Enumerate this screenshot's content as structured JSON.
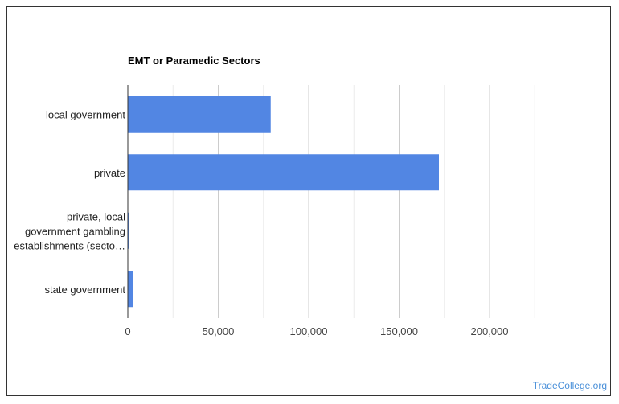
{
  "chart_data": {
    "type": "bar",
    "orientation": "horizontal",
    "title": "EMT or Paramedic Sectors",
    "categories": [
      [
        "local government"
      ],
      [
        "private"
      ],
      [
        "private, local",
        "government gambling",
        "establishments (secto…"
      ],
      [
        "state government"
      ]
    ],
    "values": [
      79000,
      172000,
      800,
      3000
    ],
    "xlim": [
      0,
      230000
    ],
    "x_ticks": [
      0,
      50000,
      100000,
      150000,
      200000
    ],
    "x_tick_labels": [
      "0",
      "50,000",
      "100,000",
      "150,000",
      "200,000"
    ],
    "grid": true,
    "bar_color": "#5286e3",
    "legend": "none"
  },
  "watermark": "TradeCollege.org"
}
